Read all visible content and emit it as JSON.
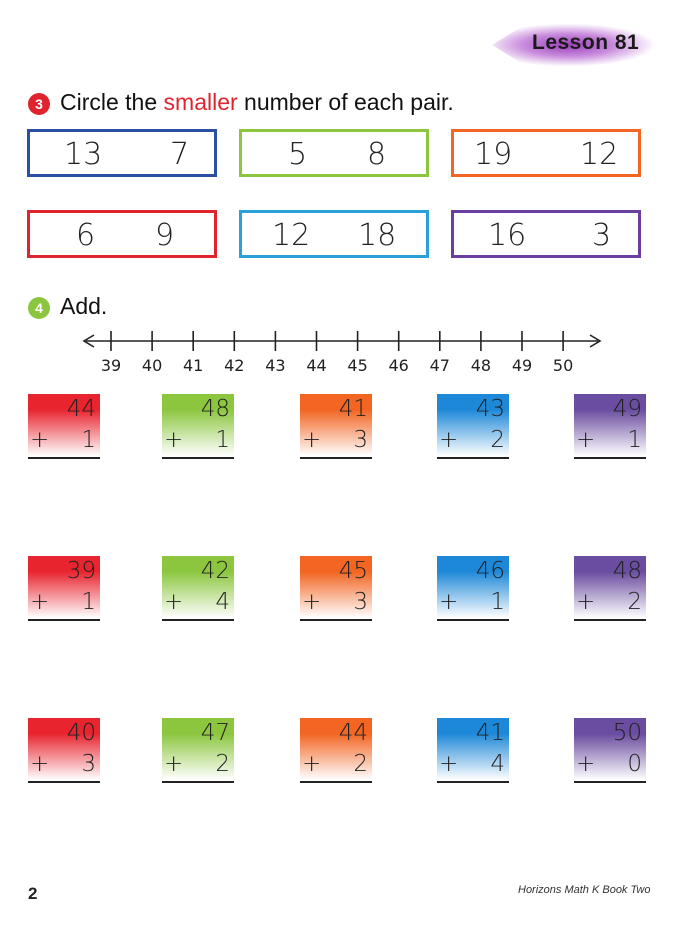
{
  "header": {
    "lesson_label": "Lesson 81"
  },
  "section3": {
    "number": "3",
    "instruction_prefix": "Circle the ",
    "instruction_highlight": "smaller",
    "instruction_suffix": " number of each pair.",
    "number_color": "#e0242f",
    "highlight_color": "#e0242f",
    "pairs": [
      {
        "a": "13",
        "b": "7",
        "color": "#2a4fa3"
      },
      {
        "a": "5",
        "b": "8",
        "color": "#8cc63f"
      },
      {
        "a": "19",
        "b": "12",
        "color": "#f26522"
      },
      {
        "a": "6",
        "b": "9",
        "color": "#e0242f"
      },
      {
        "a": "12",
        "b": "18",
        "color": "#2aa0d8"
      },
      {
        "a": "16",
        "b": "3",
        "color": "#6b3fa0"
      }
    ]
  },
  "section4": {
    "number": "4",
    "instruction": "Add.",
    "number_color": "#8cc63f",
    "number_line": [
      "39",
      "40",
      "41",
      "42",
      "43",
      "44",
      "45",
      "46",
      "47",
      "48",
      "49",
      "50"
    ],
    "colors": [
      "#e8242f",
      "#8cc63f",
      "#f26522",
      "#1e88d8",
      "#6a4ca0"
    ],
    "rows": [
      [
        {
          "top": "44",
          "bottom": "1"
        },
        {
          "top": "48",
          "bottom": "1"
        },
        {
          "top": "41",
          "bottom": "3"
        },
        {
          "top": "43",
          "bottom": "2"
        },
        {
          "top": "49",
          "bottom": "1"
        }
      ],
      [
        {
          "top": "39",
          "bottom": "1"
        },
        {
          "top": "42",
          "bottom": "4"
        },
        {
          "top": "45",
          "bottom": "3"
        },
        {
          "top": "46",
          "bottom": "1"
        },
        {
          "top": "48",
          "bottom": "2"
        }
      ],
      [
        {
          "top": "40",
          "bottom": "3"
        },
        {
          "top": "47",
          "bottom": "2"
        },
        {
          "top": "44",
          "bottom": "2"
        },
        {
          "top": "41",
          "bottom": "4"
        },
        {
          "top": "50",
          "bottom": "0"
        }
      ]
    ],
    "plus_sign": "+"
  },
  "footer": {
    "page_number": "2",
    "book_title": "Horizons  Math K Book Two"
  }
}
